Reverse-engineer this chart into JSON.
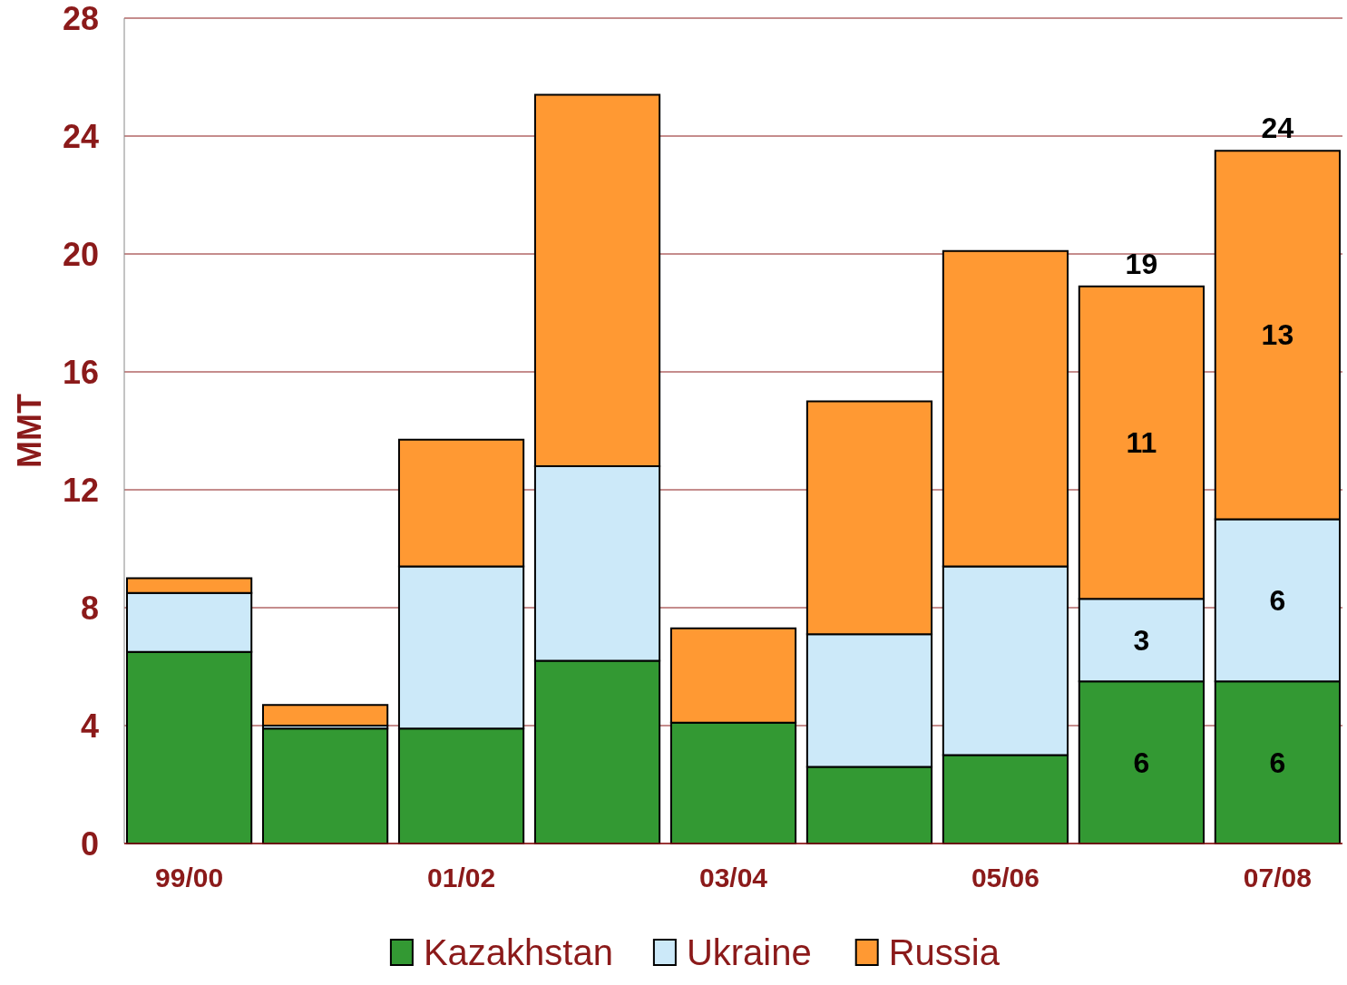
{
  "chart_data": {
    "type": "bar",
    "stacked": true,
    "ylabel": "MMT",
    "categories": [
      "99/00",
      null,
      "01/02",
      null,
      "03/04",
      null,
      "05/06",
      null,
      "07/08"
    ],
    "series": [
      {
        "name": "Kazakhstan",
        "color": "#339933",
        "values": [
          6.5,
          3.9,
          3.9,
          6.2,
          4.1,
          2.6,
          3.0,
          5.5,
          5.5
        ],
        "value_labels": [
          null,
          null,
          null,
          null,
          null,
          null,
          null,
          "6",
          "6"
        ]
      },
      {
        "name": "Ukraine",
        "color": "#cce9f9",
        "values": [
          2.0,
          0.1,
          5.5,
          6.6,
          0,
          4.5,
          6.4,
          2.8,
          5.5
        ],
        "value_labels": [
          null,
          null,
          null,
          null,
          null,
          null,
          null,
          "3",
          "6"
        ]
      },
      {
        "name": "Russia",
        "color": "#ff9933",
        "values": [
          0.5,
          0.7,
          4.3,
          12.6,
          3.2,
          7.9,
          10.7,
          10.6,
          12.5
        ],
        "value_labels": [
          null,
          null,
          null,
          null,
          null,
          null,
          null,
          "11",
          "13"
        ]
      }
    ],
    "totals": [
      null,
      null,
      null,
      null,
      null,
      null,
      null,
      "19",
      "24"
    ],
    "ylim": [
      0,
      28
    ],
    "yticks": [
      0,
      4,
      8,
      12,
      16,
      20,
      24,
      28
    ],
    "grid": "y",
    "legend": "bottom"
  }
}
